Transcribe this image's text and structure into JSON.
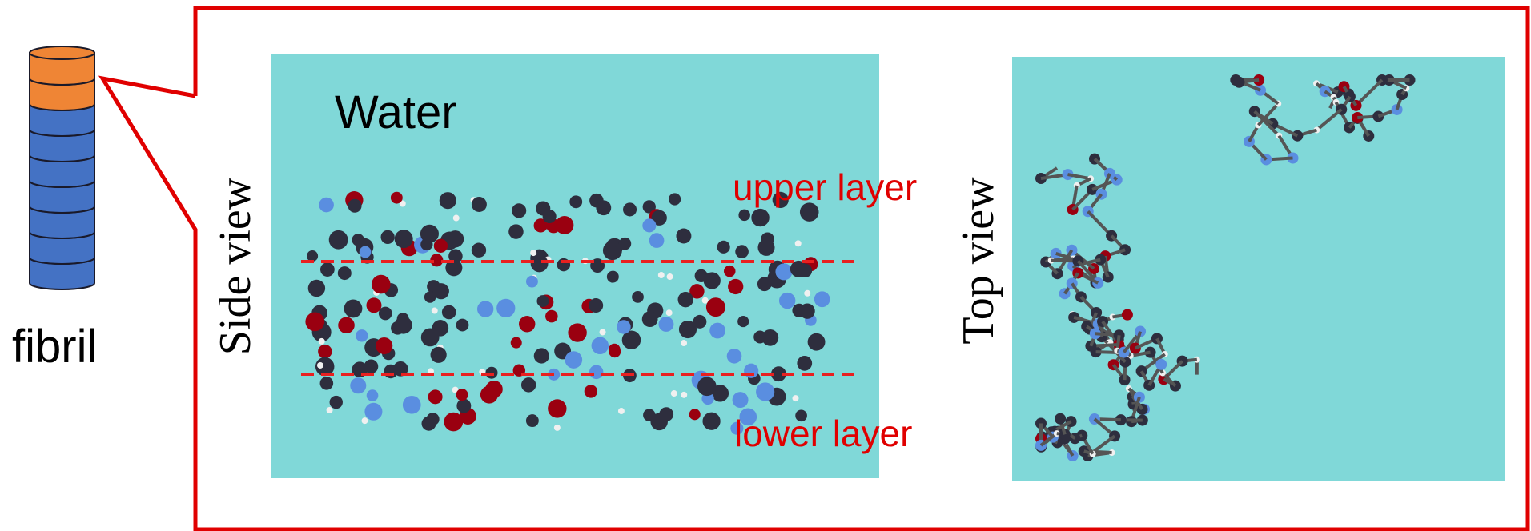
{
  "labels": {
    "fibril": "fibril",
    "water": "Water",
    "side_view": "Side view",
    "upper_layer": "upper layer",
    "lower_layer": "lower layer",
    "top_view": "Top view"
  }
}
